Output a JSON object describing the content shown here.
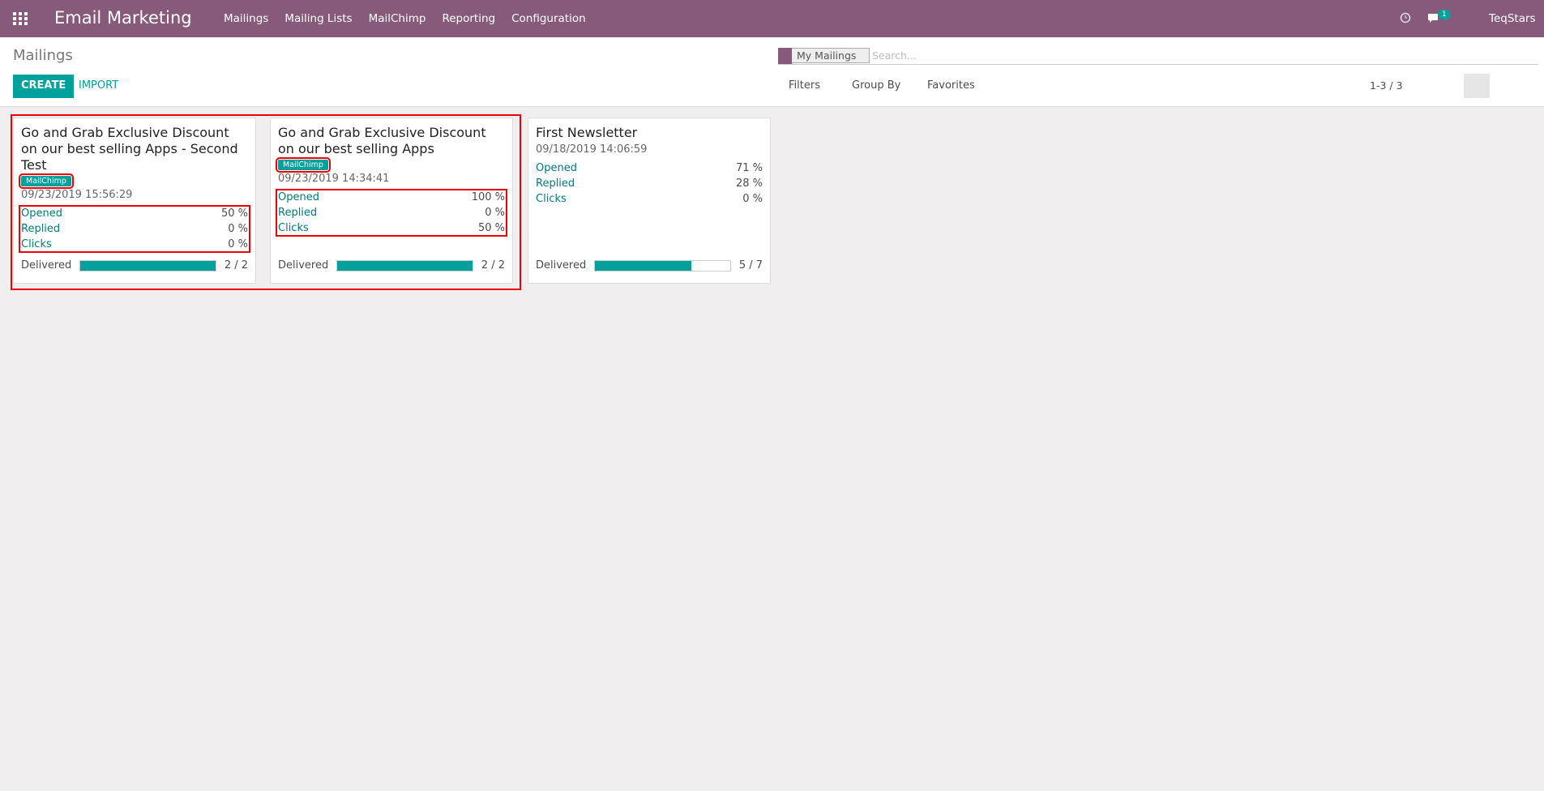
{
  "navbar": {
    "app_name": "Email Marketing",
    "menu": [
      "Mailings",
      "Mailing Lists",
      "MailChimp",
      "Reporting",
      "Configuration"
    ],
    "chat_count": "1",
    "user": "TeqStars"
  },
  "control_panel": {
    "breadcrumb": "Mailings",
    "create": "CREATE",
    "import": "IMPORT",
    "facet": "My Mailings",
    "search_placeholder": "Search...",
    "filters": "Filters",
    "group_by": "Group By",
    "favorites": "Favorites",
    "pager": "1-3 / 3"
  },
  "cards": [
    {
      "title": "Go and Grab Exclusive Discount on our best selling Apps - Second Test",
      "tag": "MailChimp",
      "date": "09/23/2019 15:56:29",
      "stats": [
        {
          "label": "Opened",
          "value": "50 %"
        },
        {
          "label": "Replied",
          "value": "0 %"
        },
        {
          "label": "Clicks",
          "value": "0 %"
        }
      ],
      "delivered_label": "Delivered",
      "delivered": {
        "value": 2,
        "total": 2,
        "label": "2 / 2"
      }
    },
    {
      "title": "Go and Grab Exclusive Discount on our best selling Apps",
      "tag": "MailChimp",
      "date": "09/23/2019 14:34:41",
      "stats": [
        {
          "label": "Opened",
          "value": "100 %"
        },
        {
          "label": "Replied",
          "value": "0 %"
        },
        {
          "label": "Clicks",
          "value": "50 %"
        }
      ],
      "delivered_label": "Delivered",
      "delivered": {
        "value": 2,
        "total": 2,
        "label": "2 / 2"
      }
    },
    {
      "title": "First Newsletter",
      "date": "09/18/2019 14:06:59",
      "stats": [
        {
          "label": "Opened",
          "value": "71 %"
        },
        {
          "label": "Replied",
          "value": "28 %"
        },
        {
          "label": "Clicks",
          "value": "0 %"
        }
      ],
      "delivered_label": "Delivered",
      "delivered": {
        "value": 5,
        "total": 7,
        "label": "5 / 7"
      }
    }
  ]
}
